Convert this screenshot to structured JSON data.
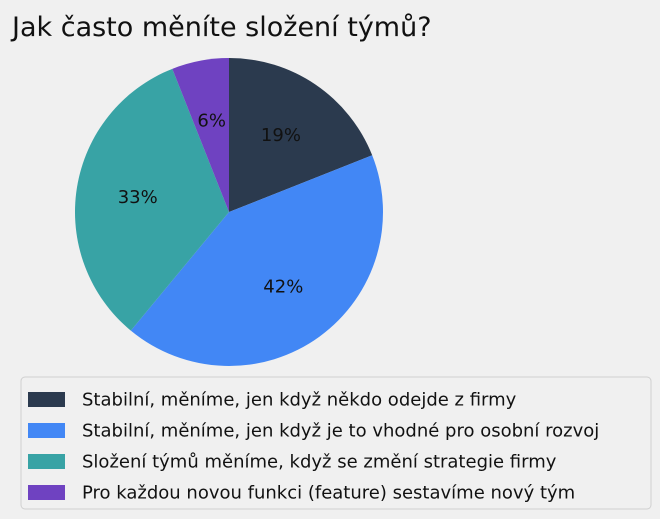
{
  "chart_data": {
    "type": "pie",
    "title": "Jak často měníte složení týmů?",
    "categories": [
      "Stabilní, měníme, jen když někdo odejde z firmy",
      "Stabilní, měníme, jen když je to vhodné pro osobní rozvoj",
      "Složení týmů měníme, když se změní strategie firmy",
      "Pro každou novou funkci (feature) sestavíme nový tým"
    ],
    "values": [
      19,
      42,
      33,
      6
    ],
    "labels": [
      "19%",
      "42%",
      "33%",
      "6%"
    ],
    "colors": [
      "#2b3a4e",
      "#4287f5",
      "#38a3a5",
      "#6f42c1"
    ],
    "legend_placement": "bottom",
    "start": "top",
    "direction": "clockwise"
  }
}
